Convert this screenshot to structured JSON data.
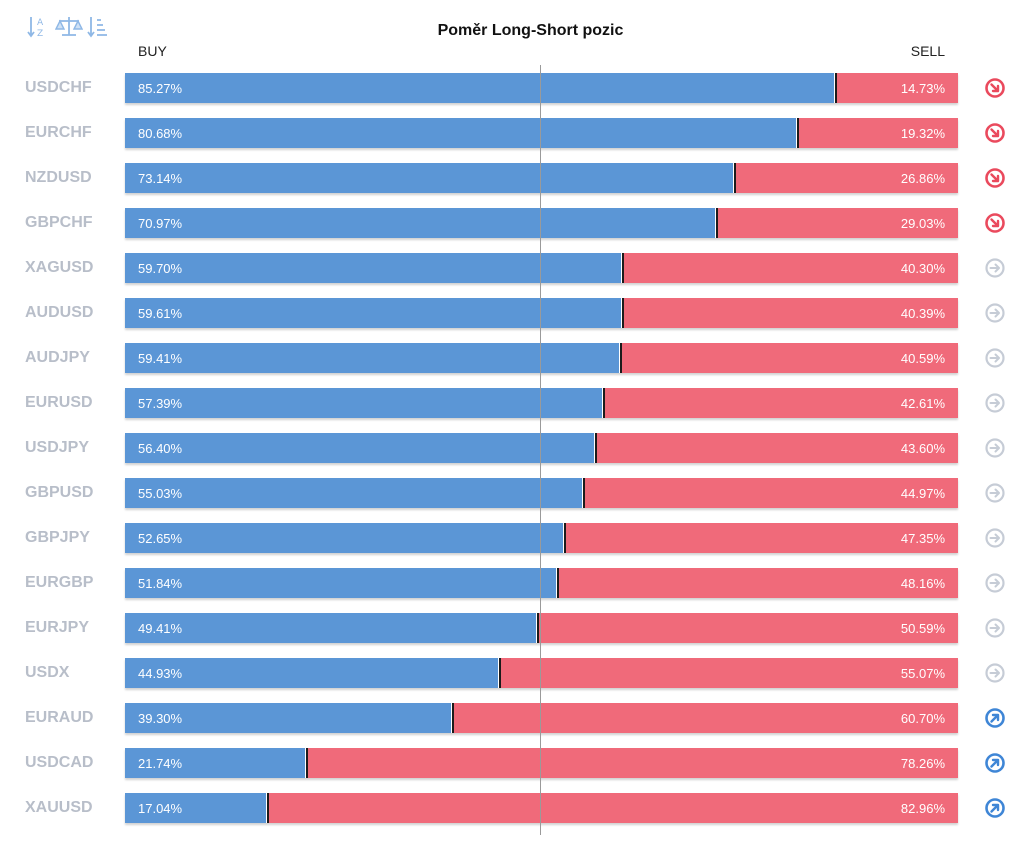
{
  "colors": {
    "buy": "#5b96d6",
    "sell": "#f06a7a",
    "neutral_icon": "#c6ccd6",
    "down_icon": "#ea4a5d",
    "up_icon": "#3f86d6",
    "toolbar_icon": "#8fb8e6",
    "symbol_text": "#b8bec9"
  },
  "toolbar": {
    "icons": [
      "sort-alphabetical-icon",
      "balance-scale-icon",
      "sort-descending-icon"
    ]
  },
  "chart_data": {
    "type": "bar",
    "stacked": true,
    "orientation": "horizontal",
    "title": "Poměr Long-Short pozic",
    "buy_label": "BUY",
    "sell_label": "SELL",
    "xlim": [
      0,
      100
    ],
    "unit": "%",
    "rows": [
      {
        "symbol": "USDCHF",
        "buy": 85.27,
        "sell": 14.73,
        "buy_text": "85.27%",
        "sell_text": "14.73%",
        "trend": "down"
      },
      {
        "symbol": "EURCHF",
        "buy": 80.68,
        "sell": 19.32,
        "buy_text": "80.68%",
        "sell_text": "19.32%",
        "trend": "down"
      },
      {
        "symbol": "NZDUSD",
        "buy": 73.14,
        "sell": 26.86,
        "buy_text": "73.14%",
        "sell_text": "26.86%",
        "trend": "down"
      },
      {
        "symbol": "GBPCHF",
        "buy": 70.97,
        "sell": 29.03,
        "buy_text": "70.97%",
        "sell_text": "29.03%",
        "trend": "down"
      },
      {
        "symbol": "XAGUSD",
        "buy": 59.7,
        "sell": 40.3,
        "buy_text": "59.70%",
        "sell_text": "40.30%",
        "trend": "neutral"
      },
      {
        "symbol": "AUDUSD",
        "buy": 59.61,
        "sell": 40.39,
        "buy_text": "59.61%",
        "sell_text": "40.39%",
        "trend": "neutral"
      },
      {
        "symbol": "AUDJPY",
        "buy": 59.41,
        "sell": 40.59,
        "buy_text": "59.41%",
        "sell_text": "40.59%",
        "trend": "neutral"
      },
      {
        "symbol": "EURUSD",
        "buy": 57.39,
        "sell": 42.61,
        "buy_text": "57.39%",
        "sell_text": "42.61%",
        "trend": "neutral"
      },
      {
        "symbol": "USDJPY",
        "buy": 56.4,
        "sell": 43.6,
        "buy_text": "56.40%",
        "sell_text": "43.60%",
        "trend": "neutral"
      },
      {
        "symbol": "GBPUSD",
        "buy": 55.03,
        "sell": 44.97,
        "buy_text": "55.03%",
        "sell_text": "44.97%",
        "trend": "neutral"
      },
      {
        "symbol": "GBPJPY",
        "buy": 52.65,
        "sell": 47.35,
        "buy_text": "52.65%",
        "sell_text": "47.35%",
        "trend": "neutral"
      },
      {
        "symbol": "EURGBP",
        "buy": 51.84,
        "sell": 48.16,
        "buy_text": "51.84%",
        "sell_text": "48.16%",
        "trend": "neutral"
      },
      {
        "symbol": "EURJPY",
        "buy": 49.41,
        "sell": 50.59,
        "buy_text": "49.41%",
        "sell_text": "50.59%",
        "trend": "neutral"
      },
      {
        "symbol": "USDX",
        "buy": 44.93,
        "sell": 55.07,
        "buy_text": "44.93%",
        "sell_text": "55.07%",
        "trend": "neutral"
      },
      {
        "symbol": "EURAUD",
        "buy": 39.3,
        "sell": 60.7,
        "buy_text": "39.30%",
        "sell_text": "60.70%",
        "trend": "up"
      },
      {
        "symbol": "USDCAD",
        "buy": 21.74,
        "sell": 78.26,
        "buy_text": "21.74%",
        "sell_text": "78.26%",
        "trend": "up"
      },
      {
        "symbol": "XAUUSD",
        "buy": 17.04,
        "sell": 82.96,
        "buy_text": "17.04%",
        "sell_text": "82.96%",
        "trend": "up"
      }
    ]
  }
}
